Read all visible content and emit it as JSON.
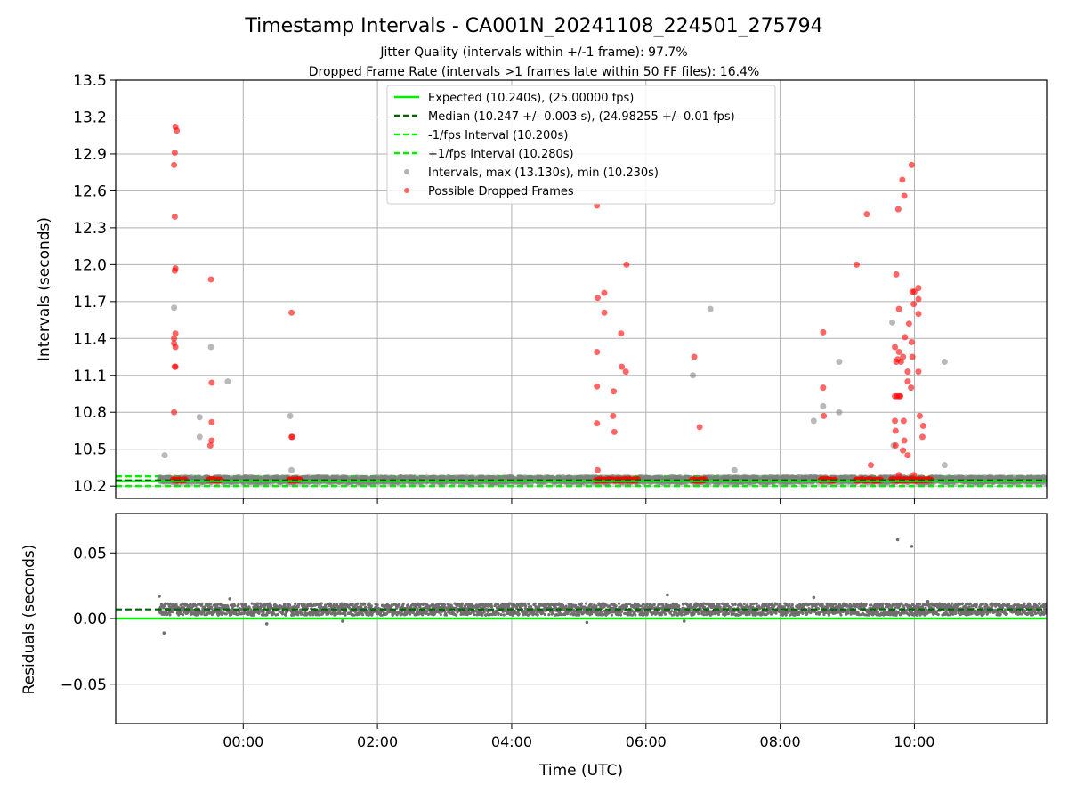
{
  "title": "Timestamp Intervals - CA001N_20241108_224501_275794",
  "subtitle_1": "Jitter Quality (intervals within +/-1 frame): 97.7%",
  "subtitle_2": "Dropped Frame Rate (intervals >1 frames late within 50 FF files): 16.4%",
  "colors": {
    "expected": "#00ee00",
    "median": "#006400",
    "interval_lines": "#00ee00",
    "intervals_marker": "#808080",
    "dropped_marker": "#ff0000",
    "residuals_marker": "#6e6e6e",
    "grid": "#b0b0b0"
  },
  "chart_data": [
    {
      "type": "scatter",
      "panel": "top",
      "xlabel": "",
      "ylabel": "Intervals (seconds)",
      "xlim_hours": [
        -1.9,
        11.97
      ],
      "ylim": [
        10.1,
        13.5
      ],
      "yticks": [
        "10.2",
        "10.5",
        "10.8",
        "11.1",
        "11.4",
        "11.7",
        "12.0",
        "12.3",
        "12.6",
        "12.9",
        "13.2",
        "13.5"
      ],
      "grid": "both",
      "legend_position": "upper-center",
      "legend": [
        {
          "label": "Expected (10.240s), (25.00000 fps)",
          "style": "solid",
          "color": "#00ee00"
        },
        {
          "label": "Median (10.247 +/- 0.003 s), (24.98255 +/- 0.01 fps)",
          "style": "dashed",
          "color": "#006400"
        },
        {
          "label": "-1/fps Interval (10.200s)",
          "style": "dashed",
          "color": "#00ee00"
        },
        {
          "label": "+1/fps Interval (10.280s)",
          "style": "dashed",
          "color": "#00ee00"
        },
        {
          "label": "Intervals, max (13.130s), min (10.230s)",
          "style": "marker",
          "color": "#808080"
        },
        {
          "label": "Possible Dropped Frames",
          "style": "marker",
          "color": "#ff0000"
        }
      ],
      "lines": {
        "expected": 10.24,
        "median": 10.247,
        "minus_1fps": 10.2,
        "plus_1fps": 10.28
      },
      "series": [
        {
          "name": "Intervals, max (13.130s), min (10.230s)",
          "points": [
            [
              -1.17,
              10.45
            ],
            [
              -1.03,
              11.65
            ],
            [
              -0.65,
              10.76
            ],
            [
              -0.65,
              10.6
            ],
            [
              -0.48,
              11.33
            ],
            [
              -0.23,
              11.05
            ],
            [
              0.7,
              10.77
            ],
            [
              0.72,
              10.33
            ],
            [
              6.7,
              11.1
            ],
            [
              6.96,
              11.64
            ],
            [
              7.32,
              10.33
            ],
            [
              8.5,
              10.73
            ],
            [
              8.64,
              10.85
            ],
            [
              8.88,
              11.21
            ],
            [
              8.88,
              10.8
            ],
            [
              9.67,
              11.53
            ],
            [
              9.69,
              10.53
            ],
            [
              10.45,
              11.21
            ],
            [
              10.45,
              10.37
            ]
          ]
        },
        {
          "name": "Possible Dropped Frames",
          "points": [
            [
              -1.01,
              13.12
            ],
            [
              -0.99,
              13.09
            ],
            [
              -1.02,
              12.91
            ],
            [
              -1.03,
              12.81
            ],
            [
              -1.02,
              12.39
            ],
            [
              -1.01,
              11.97
            ],
            [
              -1.02,
              11.95
            ],
            [
              -1.01,
              11.44
            ],
            [
              -1.03,
              11.4
            ],
            [
              -1.03,
              11.36
            ],
            [
              -1.01,
              11.33
            ],
            [
              -1.02,
              11.17
            ],
            [
              -1.01,
              11.17
            ],
            [
              -1.03,
              10.8
            ],
            [
              -0.48,
              11.88
            ],
            [
              -0.47,
              11.04
            ],
            [
              -0.47,
              10.72
            ],
            [
              -0.47,
              10.57
            ],
            [
              -0.49,
              10.53
            ],
            [
              0.72,
              11.61
            ],
            [
              0.73,
              10.6
            ],
            [
              0.72,
              10.6
            ],
            [
              5.27,
              12.48
            ],
            [
              5.28,
              11.73
            ],
            [
              5.38,
              11.77
            ],
            [
              5.38,
              11.61
            ],
            [
              5.27,
              11.29
            ],
            [
              5.27,
              11.01
            ],
            [
              5.52,
              10.97
            ],
            [
              5.27,
              10.71
            ],
            [
              5.51,
              10.77
            ],
            [
              5.53,
              10.64
            ],
            [
              5.28,
              10.33
            ],
            [
              5.63,
              11.44
            ],
            [
              5.64,
              11.17
            ],
            [
              5.7,
              11.13
            ],
            [
              5.71,
              12.0
            ],
            [
              6.72,
              11.25
            ],
            [
              6.8,
              10.68
            ],
            [
              8.64,
              11.45
            ],
            [
              8.64,
              11.0
            ],
            [
              8.65,
              10.77
            ],
            [
              9.14,
              12.0
            ],
            [
              9.29,
              12.41
            ],
            [
              9.35,
              10.37
            ],
            [
              9.76,
              12.45
            ],
            [
              9.82,
              12.69
            ],
            [
              9.85,
              12.56
            ],
            [
              9.96,
              12.81
            ],
            [
              9.73,
              11.92
            ],
            [
              9.97,
              11.78
            ],
            [
              10.0,
              11.78
            ],
            [
              10.06,
              11.81
            ],
            [
              10.06,
              11.72
            ],
            [
              9.99,
              11.68
            ],
            [
              9.77,
              11.64
            ],
            [
              10.06,
              11.6
            ],
            [
              9.92,
              11.52
            ],
            [
              9.86,
              11.41
            ],
            [
              9.96,
              11.37
            ],
            [
              9.71,
              11.33
            ],
            [
              9.77,
              11.29
            ],
            [
              9.75,
              11.23
            ],
            [
              9.73,
              11.21
            ],
            [
              9.8,
              11.21
            ],
            [
              9.83,
              11.25
            ],
            [
              9.97,
              11.25
            ],
            [
              10.06,
              11.13
            ],
            [
              9.9,
              11.13
            ],
            [
              9.9,
              11.05
            ],
            [
              9.95,
              11.0
            ],
            [
              9.71,
              10.93
            ],
            [
              9.74,
              10.93
            ],
            [
              9.77,
              10.93
            ],
            [
              9.79,
              10.93
            ],
            [
              9.71,
              10.73
            ],
            [
              9.84,
              10.73
            ],
            [
              9.72,
              10.65
            ],
            [
              9.72,
              10.53
            ],
            [
              9.85,
              10.57
            ],
            [
              9.83,
              10.49
            ],
            [
              10.08,
              10.77
            ],
            [
              10.13,
              10.69
            ],
            [
              10.12,
              10.6
            ],
            [
              9.9,
              10.45
            ],
            [
              9.77,
              10.29
            ],
            [
              9.99,
              10.29
            ]
          ]
        },
        {
          "name": "Possible Dropped Frames (clusters at baseline)",
          "y": 10.25,
          "x_ranges": [
            [
              -1.05,
              -0.85
            ],
            [
              -0.52,
              -0.32
            ],
            [
              0.68,
              0.86
            ],
            [
              5.25,
              5.88
            ],
            [
              6.68,
              6.88
            ],
            [
              8.6,
              8.82
            ],
            [
              9.12,
              9.5
            ],
            [
              9.65,
              10.25
            ]
          ]
        }
      ]
    },
    {
      "type": "scatter",
      "panel": "bottom",
      "xlabel": "Time (UTC)",
      "ylabel": "Residuals (seconds)",
      "xlim_hours": [
        -1.9,
        11.97
      ],
      "ylim": [
        -0.08,
        0.08
      ],
      "yticks": [
        "0.05",
        "0.00",
        "−0.05"
      ],
      "xticks": [
        "00:00",
        "02:00",
        "04:00",
        "06:00",
        "08:00",
        "10:00"
      ],
      "grid": "both",
      "lines": {
        "expected": 0.0,
        "median": 0.007
      },
      "residual_band": {
        "x_start": -1.25,
        "x_end": 11.97,
        "center": 0.007,
        "spread": 0.0045
      },
      "outliers": [
        [
          -1.25,
          0.017
        ],
        [
          -1.18,
          -0.011
        ],
        [
          -0.2,
          0.015
        ],
        [
          0.35,
          -0.004
        ],
        [
          1.48,
          -0.002
        ],
        [
          5.12,
          -0.003
        ],
        [
          6.57,
          -0.002
        ],
        [
          6.32,
          0.018
        ],
        [
          9.75,
          0.06
        ],
        [
          9.96,
          0.055
        ],
        [
          10.2,
          0.013
        ],
        [
          8.5,
          0.016
        ]
      ]
    }
  ]
}
